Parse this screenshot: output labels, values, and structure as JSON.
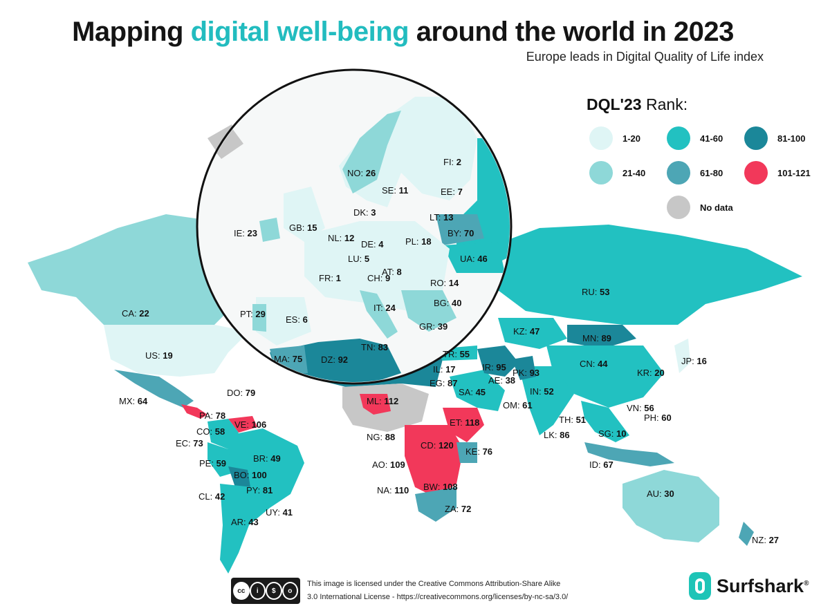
{
  "header": {
    "title_part1": "Mapping",
    "title_highlight": "digital well-being",
    "title_part2": "around the world in 2023",
    "subtitle": "Europe leads in Digital Quality of Life index"
  },
  "legend": {
    "title_bold": "DQL'23",
    "title_rest": "Rank:",
    "items": [
      {
        "label": "1-20",
        "color": "#dff5f5"
      },
      {
        "label": "21-40",
        "color": "#8ed8d8"
      },
      {
        "label": "41-60",
        "color": "#22c1c1"
      },
      {
        "label": "61-80",
        "color": "#4da6b5"
      },
      {
        "label": "81-100",
        "color": "#1b8799"
      },
      {
        "label": "101-121",
        "color": "#f2385a"
      },
      {
        "label": "No data",
        "color": "#c7c7c7"
      }
    ]
  },
  "countries": [
    {
      "code": "NO",
      "rank": "26"
    },
    {
      "code": "SE",
      "rank": "11"
    },
    {
      "code": "FI",
      "rank": "2"
    },
    {
      "code": "EE",
      "rank": "7"
    },
    {
      "code": "DK",
      "rank": "3"
    },
    {
      "code": "LT",
      "rank": "13"
    },
    {
      "code": "IE",
      "rank": "23"
    },
    {
      "code": "GB",
      "rank": "15"
    },
    {
      "code": "NL",
      "rank": "12"
    },
    {
      "code": "BY",
      "rank": "70"
    },
    {
      "code": "DE",
      "rank": "4"
    },
    {
      "code": "PL",
      "rank": "18"
    },
    {
      "code": "LU",
      "rank": "5"
    },
    {
      "code": "UA",
      "rank": "46"
    },
    {
      "code": "AT",
      "rank": "8"
    },
    {
      "code": "FR",
      "rank": "1"
    },
    {
      "code": "CH",
      "rank": "9"
    },
    {
      "code": "RO",
      "rank": "14"
    },
    {
      "code": "BG",
      "rank": "40"
    },
    {
      "code": "IT",
      "rank": "24"
    },
    {
      "code": "PT",
      "rank": "29"
    },
    {
      "code": "ES",
      "rank": "6"
    },
    {
      "code": "GR",
      "rank": "39"
    },
    {
      "code": "TN",
      "rank": "83"
    },
    {
      "code": "MA",
      "rank": "75"
    },
    {
      "code": "DZ",
      "rank": "92"
    },
    {
      "code": "RU",
      "rank": "53"
    },
    {
      "code": "CA",
      "rank": "22"
    },
    {
      "code": "KZ",
      "rank": "47"
    },
    {
      "code": "MN",
      "rank": "89"
    },
    {
      "code": "US",
      "rank": "19"
    },
    {
      "code": "TR",
      "rank": "55"
    },
    {
      "code": "IL",
      "rank": "17"
    },
    {
      "code": "IR",
      "rank": "95"
    },
    {
      "code": "JP",
      "rank": "16"
    },
    {
      "code": "CN",
      "rank": "44"
    },
    {
      "code": "AE",
      "rank": "38"
    },
    {
      "code": "PK",
      "rank": "93"
    },
    {
      "code": "KR",
      "rank": "20"
    },
    {
      "code": "EG",
      "rank": "87"
    },
    {
      "code": "DO",
      "rank": "79"
    },
    {
      "code": "IN",
      "rank": "52"
    },
    {
      "code": "MX",
      "rank": "64"
    },
    {
      "code": "ML",
      "rank": "112"
    },
    {
      "code": "SA",
      "rank": "45"
    },
    {
      "code": "OM",
      "rank": "61"
    },
    {
      "code": "VN",
      "rank": "56"
    },
    {
      "code": "PA",
      "rank": "78"
    },
    {
      "code": "VE",
      "rank": "106"
    },
    {
      "code": "TH",
      "rank": "51"
    },
    {
      "code": "PH",
      "rank": "60"
    },
    {
      "code": "ET",
      "rank": "118"
    },
    {
      "code": "CO",
      "rank": "58"
    },
    {
      "code": "NG",
      "rank": "88"
    },
    {
      "code": "SG",
      "rank": "10"
    },
    {
      "code": "EC",
      "rank": "73"
    },
    {
      "code": "CD",
      "rank": "120"
    },
    {
      "code": "LK",
      "rank": "86"
    },
    {
      "code": "KE",
      "rank": "76"
    },
    {
      "code": "BR",
      "rank": "49"
    },
    {
      "code": "PE",
      "rank": "59"
    },
    {
      "code": "AO",
      "rank": "109"
    },
    {
      "code": "ID",
      "rank": "67"
    },
    {
      "code": "BO",
      "rank": "100"
    },
    {
      "code": "NA",
      "rank": "110"
    },
    {
      "code": "BW",
      "rank": "108"
    },
    {
      "code": "PY",
      "rank": "81"
    },
    {
      "code": "AU",
      "rank": "30"
    },
    {
      "code": "CL",
      "rank": "42"
    },
    {
      "code": "UY",
      "rank": "41"
    },
    {
      "code": "ZA",
      "rank": "72"
    },
    {
      "code": "AR",
      "rank": "43"
    },
    {
      "code": "NZ",
      "rank": "27"
    }
  ],
  "footer": {
    "cc_symbols": [
      "cc",
      "i",
      "$",
      "o"
    ],
    "cc_labels": "BY   NC   SA",
    "license_line1": "This image is licensed under the Creative Commons Attribution-Share Alike",
    "license_line2": "3.0 International License - https://creativecommons.org/licenses/by-nc-sa/3.0/",
    "brand": "Surfshark",
    "brand_mark": "®"
  }
}
